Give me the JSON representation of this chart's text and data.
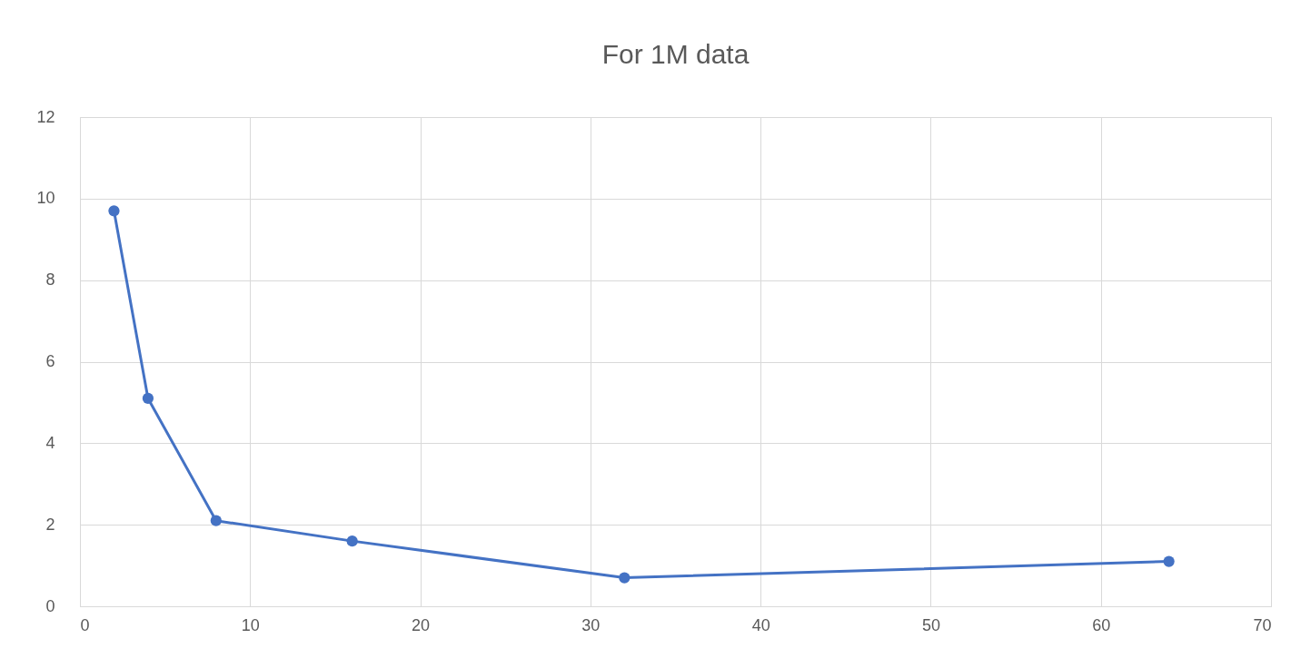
{
  "chart_data": {
    "type": "line",
    "title": "For 1M data",
    "x": [
      2,
      4,
      8,
      16,
      32,
      64
    ],
    "series": [
      {
        "color": "#4472c4",
        "values": [
          9.7,
          5.1,
          2.1,
          1.6,
          0.7,
          1.1
        ]
      }
    ],
    "xlim": [
      0,
      70
    ],
    "xticks": [
      0,
      10,
      20,
      30,
      40,
      50,
      60,
      70
    ],
    "ylim": [
      0,
      12
    ],
    "yticks": [
      0,
      2,
      4,
      6,
      8,
      10,
      12
    ],
    "grid": true,
    "marker": "circle"
  }
}
